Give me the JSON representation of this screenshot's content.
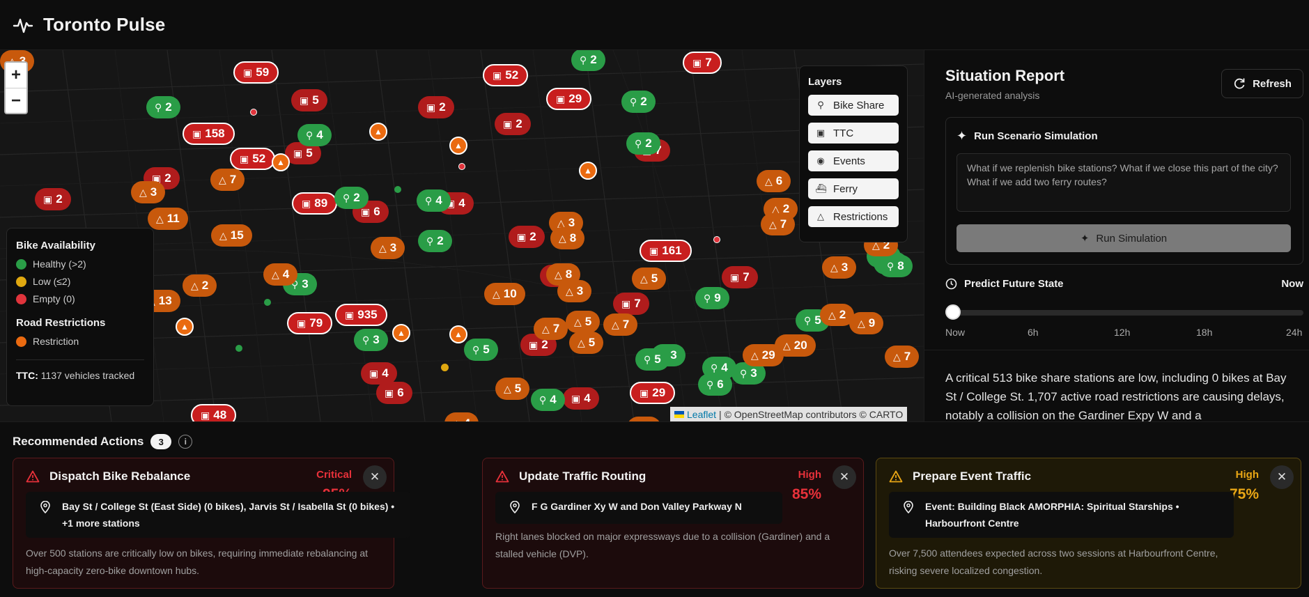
{
  "app": {
    "title": "Toronto Pulse"
  },
  "map": {
    "zoom_in": "+",
    "zoom_out": "−",
    "layers": {
      "title": "Layers",
      "items": [
        {
          "label": "Bike Share",
          "icon": "bike-icon"
        },
        {
          "label": "TTC",
          "icon": "bus-icon"
        },
        {
          "label": "Events",
          "icon": "map-pin-icon"
        },
        {
          "label": "Ferry",
          "icon": "ferry-icon"
        },
        {
          "label": "Restrictions",
          "icon": "warning-icon"
        }
      ]
    },
    "legend": {
      "bike_title": "Bike Availability",
      "healthy": "Healthy (>2)",
      "low": "Low (≤2)",
      "empty": "Empty (0)",
      "road_title": "Road Restrictions",
      "restriction": "Restriction",
      "ttc_label": "TTC:",
      "ttc_value": "1137 vehicles tracked"
    },
    "attribution": {
      "leaflet": "Leaflet",
      "rest": "| © OpenStreetMap contributors © CARTO"
    },
    "colors": {
      "ttc": "#c81e1e",
      "bike_healthy": "#2a9d47",
      "bike_low": "#e0a810",
      "restriction": "#ea6a10"
    },
    "markers": [
      {
        "t": "ttc",
        "v": "59"
      },
      {
        "t": "ttc",
        "v": "52"
      },
      {
        "t": "ttc",
        "v": "7"
      },
      {
        "t": "ttc",
        "v": "29"
      },
      {
        "t": "ttc",
        "v": "158"
      },
      {
        "t": "ttc",
        "v": "52"
      },
      {
        "t": "ttc",
        "v": "89"
      },
      {
        "t": "ttc",
        "v": "161"
      },
      {
        "t": "ttc",
        "v": "79"
      },
      {
        "t": "ttc",
        "v": "935"
      },
      {
        "t": "ttc",
        "v": "29"
      },
      {
        "t": "ttc",
        "v": "48"
      },
      {
        "t": "ttc-d",
        "v": "2"
      },
      {
        "t": "ttc-d",
        "v": "5"
      },
      {
        "t": "ttc-d",
        "v": "2"
      },
      {
        "t": "ttc-d",
        "v": "5"
      },
      {
        "t": "ttc-d",
        "v": "2"
      },
      {
        "t": "ttc-d",
        "v": "2"
      },
      {
        "t": "ttc-d",
        "v": "6"
      },
      {
        "t": "ttc-d",
        "v": "4"
      },
      {
        "t": "ttc-d",
        "v": "2"
      },
      {
        "t": "ttc-d",
        "v": "7"
      },
      {
        "t": "ttc-d",
        "v": "2"
      },
      {
        "t": "ttc-d",
        "v": "7"
      },
      {
        "t": "ttc-d",
        "v": "7"
      },
      {
        "t": "ttc-d",
        "v": "4"
      },
      {
        "t": "ttc-d",
        "v": "4"
      },
      {
        "t": "ttc-d",
        "v": "2"
      },
      {
        "t": "ttc-d",
        "v": "6"
      },
      {
        "t": "bike",
        "v": "2"
      },
      {
        "t": "bike",
        "v": "2"
      },
      {
        "t": "bike",
        "v": "4"
      },
      {
        "t": "bike",
        "v": "2"
      },
      {
        "t": "bike",
        "v": "2"
      },
      {
        "t": "bike",
        "v": "2"
      },
      {
        "t": "bike",
        "v": "4"
      },
      {
        "t": "bike",
        "v": "2"
      },
      {
        "t": "bike",
        "v": "3"
      },
      {
        "t": "bike",
        "v": "9"
      },
      {
        "t": "bike",
        "v": "5"
      },
      {
        "t": "bike",
        "v": "8"
      },
      {
        "t": "bike",
        "v": "3"
      },
      {
        "t": "bike",
        "v": "5"
      },
      {
        "t": "bike",
        "v": "3"
      },
      {
        "t": "bike",
        "v": "4"
      },
      {
        "t": "bike",
        "v": "5"
      },
      {
        "t": "bike",
        "v": "3"
      },
      {
        "t": "bike",
        "v": "3"
      },
      {
        "t": "bike",
        "v": "6"
      },
      {
        "t": "bike",
        "v": "4"
      },
      {
        "t": "bike",
        "v": "2"
      },
      {
        "t": "restr",
        "v": "3"
      },
      {
        "t": "restr",
        "v": "3"
      },
      {
        "t": "restr",
        "v": "7"
      },
      {
        "t": "restr",
        "v": "11"
      },
      {
        "t": "restr",
        "v": "15"
      },
      {
        "t": "restr",
        "v": "3"
      },
      {
        "t": "restr",
        "v": "2"
      },
      {
        "t": "restr",
        "v": "3"
      },
      {
        "t": "restr",
        "v": "8"
      },
      {
        "t": "restr",
        "v": "8"
      },
      {
        "t": "restr",
        "v": "5"
      },
      {
        "t": "restr",
        "v": "3"
      },
      {
        "t": "restr",
        "v": "10"
      },
      {
        "t": "restr",
        "v": "5"
      },
      {
        "t": "restr",
        "v": "5"
      },
      {
        "t": "restr",
        "v": "7"
      },
      {
        "t": "restr",
        "v": "7"
      },
      {
        "t": "restr",
        "v": "6"
      },
      {
        "t": "restr",
        "v": "2"
      },
      {
        "t": "restr",
        "v": "7"
      },
      {
        "t": "restr",
        "v": "2"
      },
      {
        "t": "restr",
        "v": "9"
      },
      {
        "t": "restr",
        "v": "29"
      },
      {
        "t": "restr",
        "v": "20"
      },
      {
        "t": "restr",
        "v": "7"
      },
      {
        "t": "restr",
        "v": "13"
      },
      {
        "t": "restr",
        "v": "4"
      },
      {
        "t": "restr",
        "v": "3"
      },
      {
        "t": "restr",
        "v": "2"
      },
      {
        "t": "restr",
        "v": "5"
      },
      {
        "t": "restr",
        "v": "4"
      },
      {
        "t": "restr",
        "v": "3"
      },
      {
        "t": "restr",
        "v": "7"
      }
    ]
  },
  "report": {
    "title": "Situation Report",
    "subtitle": "AI-generated analysis",
    "refresh": "Refresh",
    "sim_title": "Run Scenario Simulation",
    "sim_placeholder": "What if we replenish bike stations? What if we close this part of the city? What if we add two ferry routes?",
    "run_label": "Run Simulation",
    "predict_title": "Predict Future State",
    "predict_value": "Now",
    "predict_fraction": 0,
    "ticks": [
      "Now",
      "6h",
      "12h",
      "18h",
      "24h"
    ],
    "summary": "A critical 513 bike share stations are low, including 0 bikes at Bay St / College St. 1,707 active road restrictions are causing delays, notably a collision on the Gardiner Expy W and a"
  },
  "actions": {
    "title": "Recommended Actions",
    "count": "3",
    "info": "i",
    "cards": [
      {
        "title": "Dispatch Bike Rebalance",
        "severity": "Critical",
        "confidence": "95%",
        "location": "Bay St / College St (East Side) (0 bikes), Jarvis St / Isabella St (0 bikes) • +1 more stations",
        "description": "Over 500 stations are critically low on bikes, requiring immediate rebalancing at high-capacity zero-bike downtown hubs.",
        "color": "#e8313a"
      },
      {
        "title": "Update Traffic Routing",
        "severity": "High",
        "confidence": "85%",
        "location": "F G Gardiner Xy W and Don Valley Parkway N",
        "description": "Right lanes blocked on major expressways due to a collision (Gardiner) and a stalled vehicle (DVP).",
        "color": "#e8313a"
      },
      {
        "title": "Prepare Event Traffic",
        "severity": "High",
        "confidence": "75%",
        "location": "Event: Building Black AMORPHIA: Spiritual Starships • Harbourfront Centre",
        "description": "Over 7,500 attendees expected across two sessions at Harbourfront Centre, risking severe localized congestion.",
        "color": "#e9a615"
      }
    ]
  }
}
